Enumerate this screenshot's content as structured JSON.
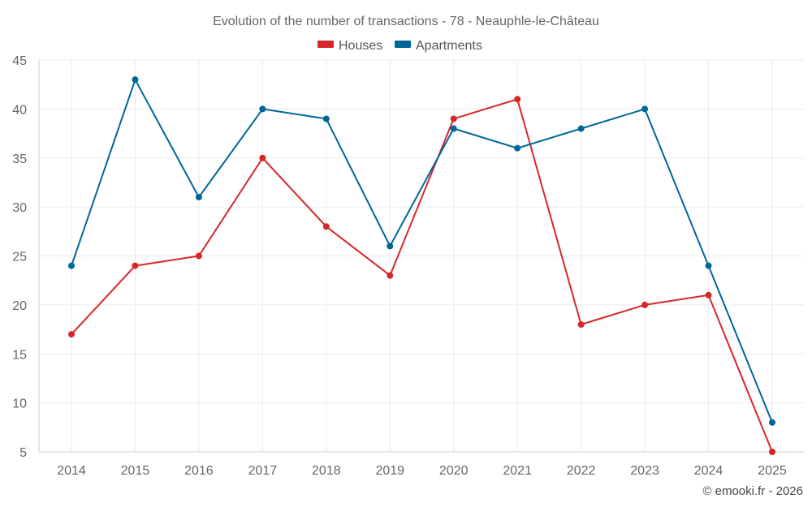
{
  "chart_data": {
    "type": "line",
    "title": "Evolution of the number of transactions - 78 - Neauphle-le-Château",
    "categories": [
      "2014",
      "2015",
      "2016",
      "2017",
      "2018",
      "2019",
      "2020",
      "2021",
      "2022",
      "2023",
      "2024",
      "2025"
    ],
    "series": [
      {
        "name": "Houses",
        "color": "#d62728",
        "values": [
          17,
          24,
          25,
          35,
          28,
          23,
          39,
          41,
          18,
          20,
          21,
          5
        ]
      },
      {
        "name": "Apartments",
        "color": "#006699",
        "values": [
          24,
          43,
          31,
          40,
          39,
          26,
          38,
          36,
          38,
          40,
          24,
          8
        ]
      }
    ],
    "ylim": [
      5,
      45
    ],
    "yticks": [
      5,
      10,
      15,
      20,
      25,
      30,
      35,
      40,
      45
    ],
    "xlabel": "",
    "ylabel": "",
    "legend_position": "top-center",
    "grid": true
  },
  "credit": "© emooki.fr - 2026"
}
